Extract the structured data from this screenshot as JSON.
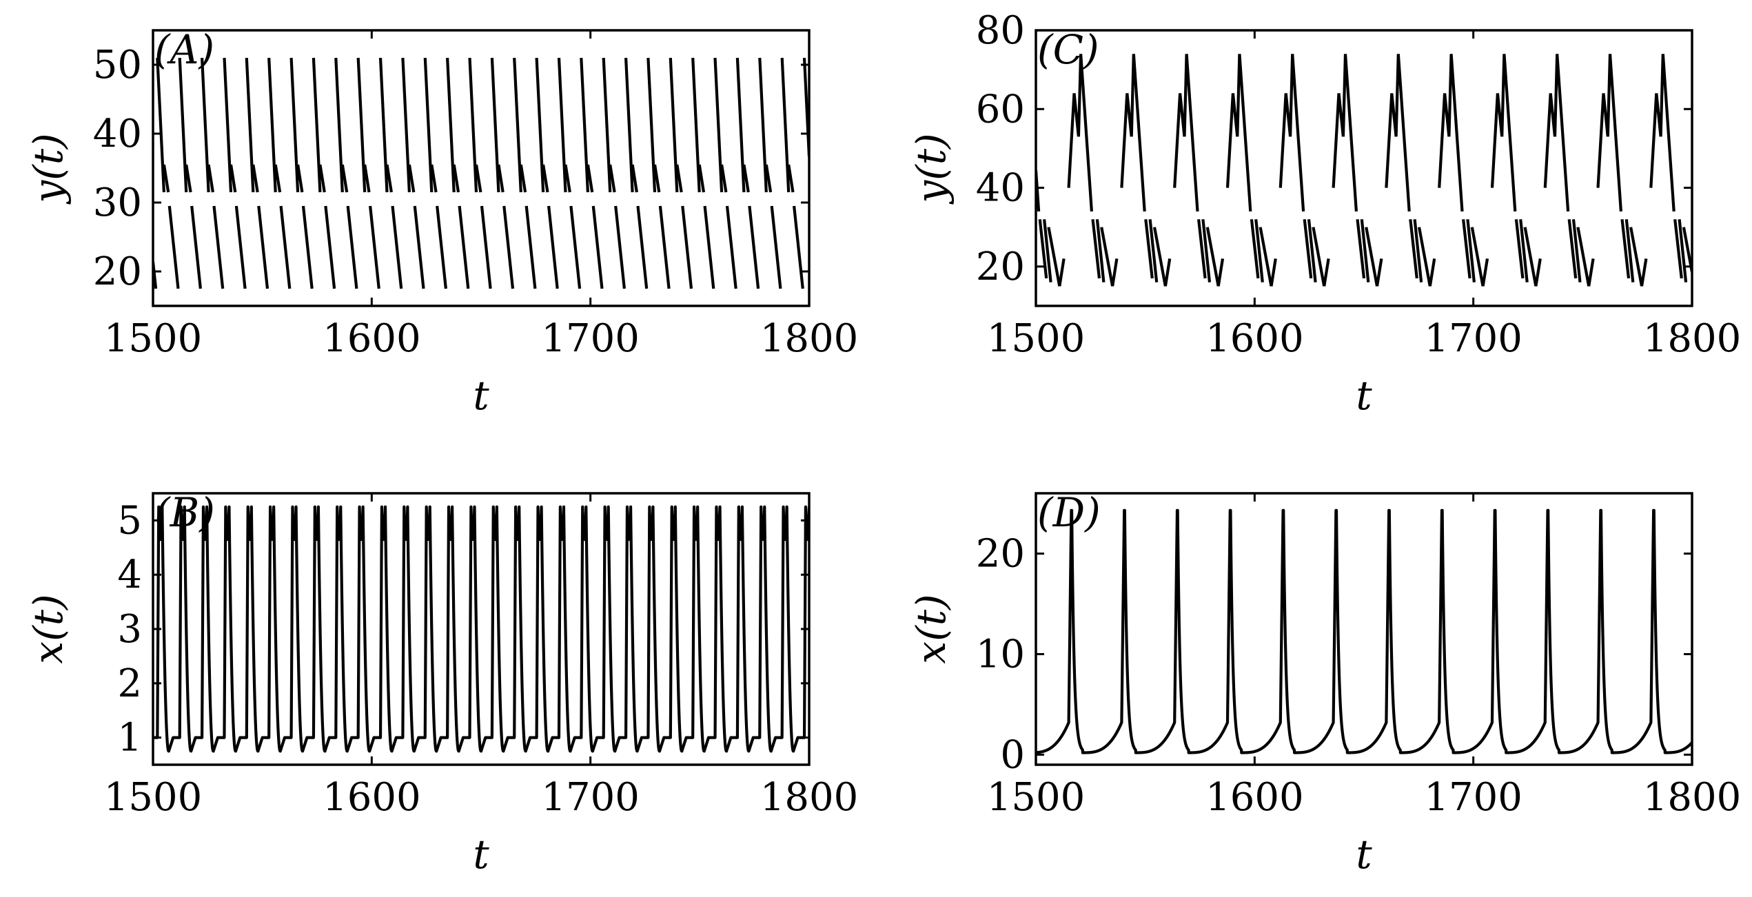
{
  "chart_data": [
    {
      "type": "line",
      "panel_label": "(A)",
      "xlabel": "t",
      "ylabel": "y(t)",
      "xlim": [
        1500,
        1800
      ],
      "ylim": [
        15,
        55
      ],
      "xticks": [
        1500,
        1600,
        1700,
        1800
      ],
      "yticks": [
        20,
        30,
        40,
        50
      ],
      "xtick_labels": [
        "1500",
        "1600",
        "1700",
        "1800"
      ],
      "ytick_labels": [
        "20",
        "30",
        "40",
        "50"
      ],
      "grid": false,
      "series": [
        {
          "style": "broken piecewise segments",
          "color": "#000000",
          "period": 10.2,
          "phase": 1502,
          "segments": [
            {
              "dt_start": 0.0,
              "dt_end": 3.0,
              "y_start": 51,
              "y_end": 31.5
            },
            {
              "dt_start": 3.0,
              "dt_end": 5.0,
              "y_start": 35.5,
              "y_end": 31.5
            },
            {
              "dt_start": 5.5,
              "dt_end": 9.5,
              "y_start": 29.5,
              "y_end": 17.5
            }
          ]
        }
      ]
    },
    {
      "type": "line",
      "panel_label": "(B)",
      "xlabel": "t",
      "ylabel": "x(t)",
      "xlim": [
        1500,
        1800
      ],
      "ylim": [
        0.5,
        5.5
      ],
      "xticks": [
        1500,
        1600,
        1700,
        1800
      ],
      "yticks": [
        1,
        2,
        3,
        4,
        5
      ],
      "xtick_labels": [
        "1500",
        "1600",
        "1700",
        "1800"
      ],
      "ytick_labels": [
        "1",
        "2",
        "3",
        "4",
        "5"
      ],
      "grid": false,
      "series": [
        {
          "style": "periodic spikes",
          "color": "#000000",
          "period": 10.2,
          "phase": 1502,
          "peak": 5.25,
          "shoulder": 4.65,
          "trough_high": 1.0,
          "trough_low": 0.75
        }
      ]
    },
    {
      "type": "line",
      "panel_label": "(C)",
      "xlabel": "t",
      "ylabel": "y(t)",
      "xlim": [
        1500,
        1800
      ],
      "ylim": [
        10,
        80
      ],
      "xticks": [
        1500,
        1600,
        1700,
        1800
      ],
      "yticks": [
        20,
        40,
        60,
        80
      ],
      "xtick_labels": [
        "1500",
        "1600",
        "1700",
        "1800"
      ],
      "ytick_labels": [
        "20",
        "40",
        "60",
        "80"
      ],
      "grid": false,
      "series": [
        {
          "style": "broken piecewise segments",
          "color": "#000000",
          "period": 24.2,
          "phase": 1515,
          "segments": [
            {
              "dt_start": 0.0,
              "dt_end": 2.5,
              "y_start": 40,
              "y_end": 64
            },
            {
              "dt_start": 2.5,
              "dt_end": 4.5,
              "y_start": 64,
              "y_end": 53
            },
            {
              "dt_start": 4.5,
              "dt_end": 5.5,
              "y_start": 53,
              "y_end": 74
            },
            {
              "dt_start": 5.5,
              "dt_end": 10.5,
              "y_start": 74,
              "y_end": 34
            },
            {
              "dt_start": 11.0,
              "dt_end": 14.0,
              "y_start": 32,
              "y_end": 17
            },
            {
              "dt_start": 13.0,
              "dt_end": 16.0,
              "y_start": 32,
              "y_end": 16
            },
            {
              "dt_start": 15.0,
              "dt_end": 20.0,
              "y_start": 30,
              "y_end": 15
            },
            {
              "dt_start": 20.0,
              "dt_end": 22.0,
              "y_start": 15,
              "y_end": 22
            }
          ]
        }
      ]
    },
    {
      "type": "line",
      "panel_label": "(D)",
      "xlabel": "t",
      "ylabel": "x(t)",
      "xlim": [
        1500,
        1800
      ],
      "ylim": [
        -1,
        26
      ],
      "xticks": [
        1500,
        1600,
        1700,
        1800
      ],
      "yticks": [
        0,
        10,
        20
      ],
      "xtick_labels": [
        "1500",
        "1600",
        "1700",
        "1800"
      ],
      "ytick_labels": [
        "0",
        "10",
        "20"
      ],
      "grid": false,
      "series": [
        {
          "style": "periodic spikes",
          "color": "#000000",
          "period": 24.2,
          "phase": 1515,
          "peak": 24.3,
          "baseline": 0.2
        }
      ]
    }
  ]
}
